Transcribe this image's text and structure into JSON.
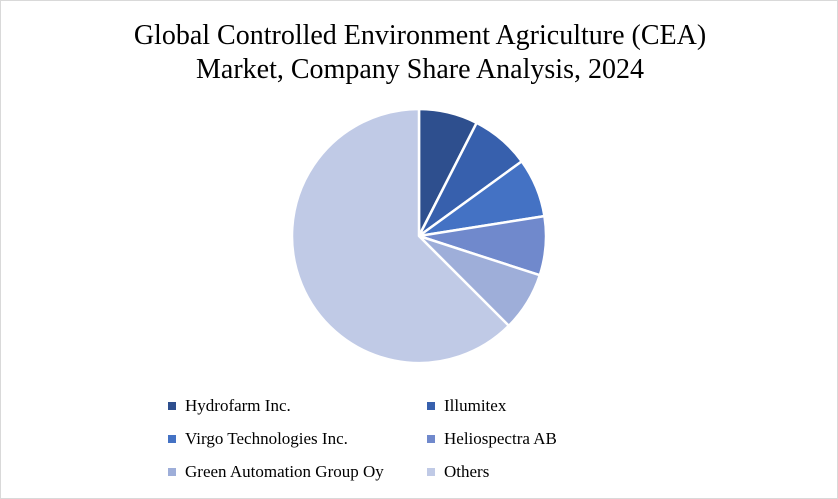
{
  "chart_data": {
    "type": "pie",
    "title_lines": [
      "Global Controlled Environment Agriculture (CEA)",
      "Market, Company Share Analysis, 2024"
    ],
    "categories": [
      "Hydrofarm Inc.",
      "Illumitex",
      "Virgo Technologies Inc.",
      "Heliospectra AB",
      "Green Automation Group Oy",
      "Others"
    ],
    "values": [
      7.5,
      7.5,
      7.5,
      7.5,
      7.5,
      62.5
    ],
    "colors": [
      "#2e4f8e",
      "#3760ad",
      "#4472c4",
      "#7089cc",
      "#9eaed9",
      "#c0cae6"
    ],
    "legend_position": "bottom"
  }
}
